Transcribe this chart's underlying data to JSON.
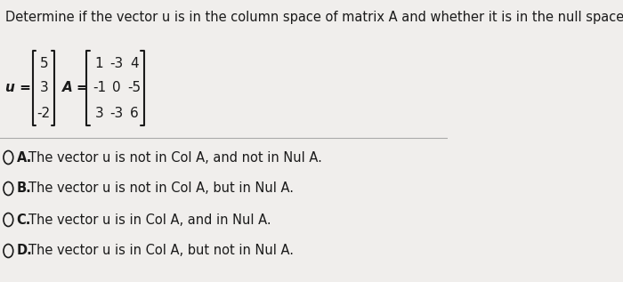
{
  "title": "Determine if the vector u is in the column space of matrix A and whether it is in the null space of A.",
  "title_fontsize": 10.5,
  "bg_color": "#f0eeec",
  "u_label": "u =",
  "u_values": [
    "5",
    "3",
    "-2"
  ],
  "A_label": "A =",
  "A_values": [
    [
      "1",
      "-3",
      "4"
    ],
    [
      "-1",
      "0",
      "-5"
    ],
    [
      "3",
      "-3",
      "6"
    ]
  ],
  "options": [
    {
      "letter": "A.",
      "text": "The vector u is not in Col A, and not in Nul A."
    },
    {
      "letter": "B.",
      "text": "The vector u is not in Col A, but in Nul A."
    },
    {
      "letter": "C.",
      "text": "The vector u is in Col A, and in Nul A."
    },
    {
      "letter": "D.",
      "text": "The vector u is in Col A, but not in Nul A."
    }
  ],
  "text_color": "#1a1a1a",
  "option_fontsize": 10.5,
  "matrix_fontsize": 11,
  "bracket_color": "#1a1a1a"
}
